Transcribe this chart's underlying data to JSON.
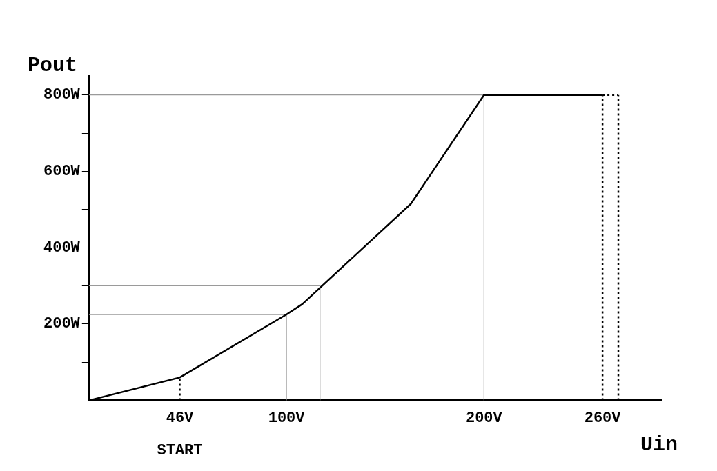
{
  "chart_data": {
    "type": "line",
    "xlabel": "Uin",
    "ylabel": "Pout",
    "x": [
      0,
      46,
      100,
      108,
      163,
      200,
      260
    ],
    "series": [
      {
        "color": "#000000",
        "values": [
          0,
          60,
          225,
          252,
          515,
          800,
          800
        ]
      },
      {
        "type": "line",
        "color": "#9a9a9a",
        "x": [
          0,
          100,
          100
        ],
        "values": [
          225,
          225,
          0
        ]
      },
      {
        "type": "line",
        "color": "#9a9a9a",
        "x": [
          0,
          117,
          117
        ],
        "values": [
          300,
          300,
          0
        ]
      },
      {
        "type": "line",
        "color": "#9a9a9a",
        "x": [
          0,
          200,
          200
        ],
        "values": [
          800,
          800,
          0
        ]
      },
      {
        "type": "line",
        "color": "#000000",
        "line_style": "dotted",
        "x": [
          46,
          46
        ],
        "values": [
          0,
          60
        ]
      },
      {
        "type": "line",
        "color": "#000000",
        "line_style": "dotted",
        "x": [
          260,
          260
        ],
        "values": [
          0,
          800
        ]
      },
      {
        "type": "line",
        "color": "#000000",
        "line_style": "dotted",
        "x": [
          268,
          268
        ],
        "values": [
          0,
          800
        ]
      },
      {
        "type": "line",
        "color": "#000000",
        "line_style": "dotted",
        "x": [
          260,
          268
        ],
        "values": [
          800,
          800
        ]
      }
    ],
    "xlim": [
      0,
      290
    ],
    "xticks": [
      {
        "value": 46,
        "label": "46V"
      },
      {
        "value": 100,
        "label": "100V"
      },
      {
        "value": 200,
        "label": "200V"
      },
      {
        "value": 260,
        "label": "260V"
      }
    ],
    "ylim": [
      0,
      850
    ],
    "yticks": [
      {
        "value": 100,
        "label": null
      },
      {
        "value": 200,
        "label": "200W"
      },
      {
        "value": 300,
        "label": null
      },
      {
        "value": 400,
        "label": "400W"
      },
      {
        "value": 500,
        "label": null
      },
      {
        "value": 600,
        "label": "600W"
      },
      {
        "value": 700,
        "label": null
      },
      {
        "value": 800,
        "label": "800W"
      }
    ],
    "annotations": [
      "START"
    ],
    "grid": false,
    "legend": false,
    "marker": "none"
  }
}
